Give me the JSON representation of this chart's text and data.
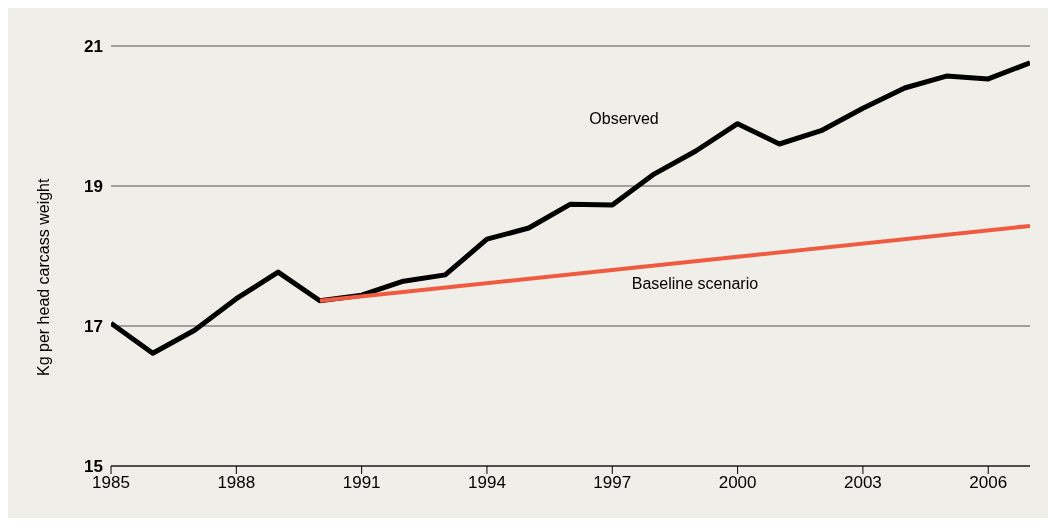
{
  "chart_data": {
    "type": "line",
    "ylabel": "Kg per head carcass weight",
    "x": [
      1985,
      1986,
      1987,
      1988,
      1989,
      1990,
      1991,
      1992,
      1993,
      1994,
      1995,
      1996,
      1997,
      1998,
      1999,
      2000,
      2001,
      2002,
      2003,
      2004,
      2005,
      2006,
      2007
    ],
    "series": [
      {
        "name": "Observed",
        "color": "#000000",
        "values": [
          17.04,
          16.61,
          16.94,
          17.39,
          17.77,
          17.36,
          17.44,
          17.64,
          17.73,
          18.24,
          18.4,
          18.74,
          18.73,
          19.17,
          19.5,
          19.89,
          19.6,
          19.79,
          20.11,
          20.4,
          20.57,
          20.53,
          20.76
        ]
      },
      {
        "name": "Baseline scenario",
        "color": "#f05a40",
        "x": [
          1990,
          2007
        ],
        "values": [
          17.36,
          18.43
        ]
      }
    ],
    "xlim": [
      1985,
      2007
    ],
    "xticks": [
      1985,
      1988,
      1991,
      1994,
      1997,
      2000,
      2003,
      2006
    ],
    "ylim": [
      15,
      21
    ],
    "yticks": [
      15,
      17,
      19,
      21
    ],
    "grid": "y",
    "legend": false,
    "marker": "none",
    "line_style": "solid"
  }
}
